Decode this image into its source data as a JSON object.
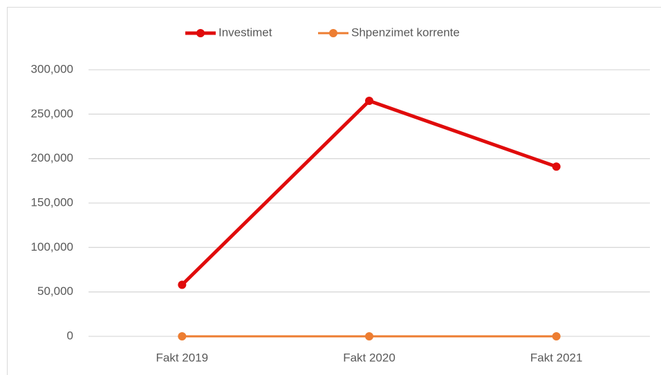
{
  "chart_data": {
    "type": "line",
    "categories": [
      "Fakt 2019",
      "Fakt 2020",
      "Fakt 2021"
    ],
    "series": [
      {
        "name": "Investimet",
        "color": "#e00b0b",
        "values": [
          58000,
          265000,
          191000
        ]
      },
      {
        "name": "Shpenzimet korrente",
        "color": "#ed7d31",
        "values": [
          0,
          0,
          0
        ]
      }
    ],
    "ylim": [
      0,
      300000
    ],
    "yticks": [
      0,
      {
        "value": 50000,
        "label": "50,000"
      },
      {
        "value": 100000,
        "label": "100,000"
      },
      {
        "value": 150000,
        "label": "150,000"
      },
      {
        "value": 200000,
        "label": "200,000"
      },
      {
        "value": 250000,
        "label": "250,000"
      },
      {
        "value": 300000,
        "label": "300,000"
      }
    ],
    "grid": true,
    "legend": "top"
  }
}
